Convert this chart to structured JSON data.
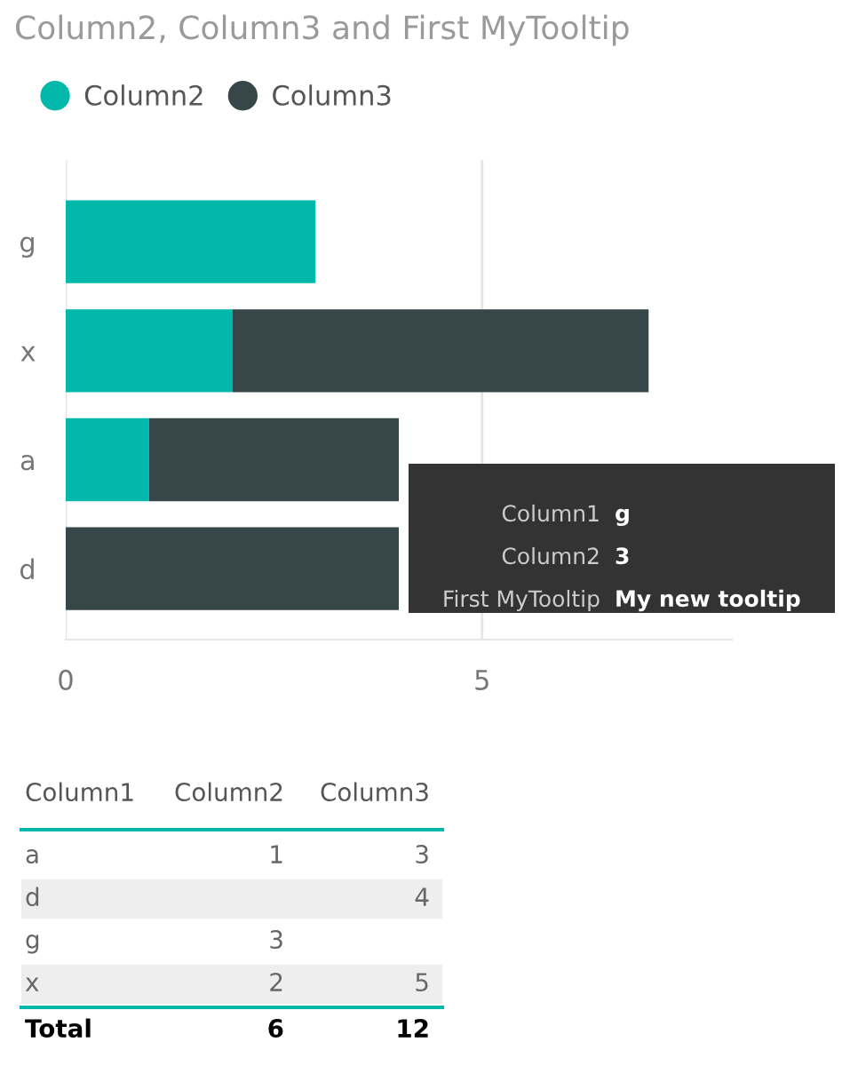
{
  "chart_data": {
    "type": "bar",
    "orientation": "horizontal",
    "stacked": true,
    "title": "Column2, Column3 and First MyTooltip",
    "categories": [
      "g",
      "x",
      "a",
      "d"
    ],
    "series": [
      {
        "name": "Column2",
        "color": "#01b8aa",
        "values": [
          3,
          2,
          1,
          null
        ]
      },
      {
        "name": "Column3",
        "color": "#374649",
        "values": [
          null,
          5,
          3,
          4
        ]
      }
    ],
    "xlim": [
      0,
      8
    ],
    "xticks": [
      0,
      5
    ],
    "grid": "x",
    "legend": "top left",
    "annotations": [
      "Column1",
      "g",
      "Column2",
      "3",
      "First MyTooltip",
      "My new tooltip",
      "Column1",
      "Column2",
      "Column3",
      "a",
      "1",
      "3",
      "d",
      "4",
      "g",
      "3",
      "x",
      "2",
      "5",
      "Total",
      "6",
      "12"
    ]
  }
}
